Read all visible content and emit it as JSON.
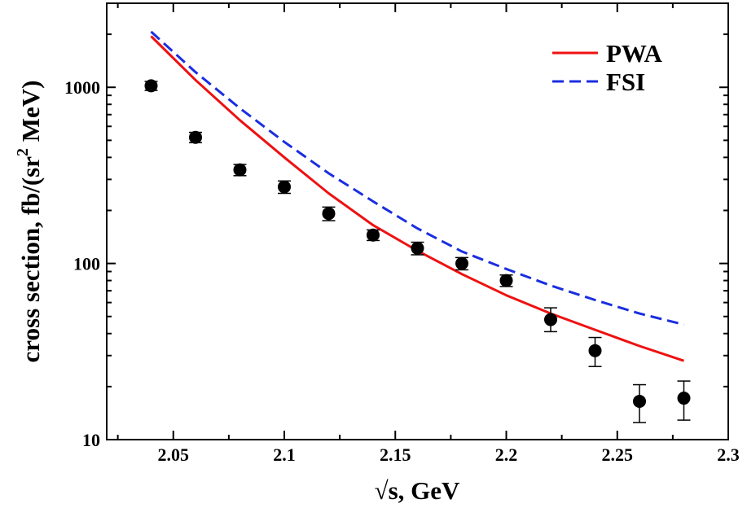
{
  "chart_data": {
    "type": "scatter",
    "title": "",
    "xlabel": "√s, GeV",
    "ylabel_main": "cross section, fb/(sr",
    "ylabel_sup": "2",
    "ylabel_tail": " MeV)",
    "xlim": [
      2.02,
      2.3
    ],
    "ylim": [
      10,
      3000
    ],
    "yscale": "log",
    "x_ticks": [
      {
        "value": 2.05,
        "label": "2.05"
      },
      {
        "value": 2.1,
        "label": "2.1"
      },
      {
        "value": 2.15,
        "label": "2.15"
      },
      {
        "value": 2.2,
        "label": "2.2"
      },
      {
        "value": 2.25,
        "label": "2.25"
      },
      {
        "value": 2.3,
        "label": "2.3"
      }
    ],
    "y_ticks": [
      {
        "value": 10,
        "label": "10"
      },
      {
        "value": 100,
        "label": "100"
      },
      {
        "value": 1000,
        "label": "1000"
      }
    ],
    "data_points": [
      {
        "x": 2.04,
        "y": 1020,
        "err_low": 60,
        "err_high": 60
      },
      {
        "x": 2.06,
        "y": 520,
        "err_low": 35,
        "err_high": 35
      },
      {
        "x": 2.08,
        "y": 340,
        "err_low": 25,
        "err_high": 25
      },
      {
        "x": 2.1,
        "y": 272,
        "err_low": 22,
        "err_high": 22
      },
      {
        "x": 2.12,
        "y": 192,
        "err_low": 17,
        "err_high": 17
      },
      {
        "x": 2.14,
        "y": 145,
        "err_low": 10,
        "err_high": 10
      },
      {
        "x": 2.16,
        "y": 122,
        "err_low": 10,
        "err_high": 10
      },
      {
        "x": 2.18,
        "y": 100,
        "err_low": 8,
        "err_high": 8
      },
      {
        "x": 2.2,
        "y": 80,
        "err_low": 6,
        "err_high": 6
      },
      {
        "x": 2.22,
        "y": 48,
        "err_low": 7,
        "err_high": 8
      },
      {
        "x": 2.24,
        "y": 32,
        "err_low": 6,
        "err_high": 6
      },
      {
        "x": 2.26,
        "y": 16.5,
        "err_low": 4,
        "err_high": 4
      },
      {
        "x": 2.28,
        "y": 17.2,
        "err_low": 4.3,
        "err_high": 4.3
      }
    ],
    "series": [
      {
        "name": "PWA",
        "color": "#ee1111",
        "style": "solid",
        "x": [
          2.04,
          2.06,
          2.08,
          2.1,
          2.12,
          2.14,
          2.16,
          2.18,
          2.2,
          2.22,
          2.24,
          2.26,
          2.28
        ],
        "y": [
          1950,
          1100,
          650,
          400,
          250,
          165,
          118,
          87,
          66,
          52,
          42,
          34,
          28
        ]
      },
      {
        "name": "FSI",
        "color": "#1a2ee0",
        "style": "dashed",
        "x": [
          2.04,
          2.06,
          2.08,
          2.1,
          2.12,
          2.14,
          2.16,
          2.18,
          2.2,
          2.22,
          2.24,
          2.26,
          2.28
        ],
        "y": [
          2070,
          1220,
          760,
          490,
          325,
          225,
          158,
          117,
          93,
          75,
          62,
          52,
          45
        ]
      }
    ],
    "legend_position": "top-right"
  }
}
